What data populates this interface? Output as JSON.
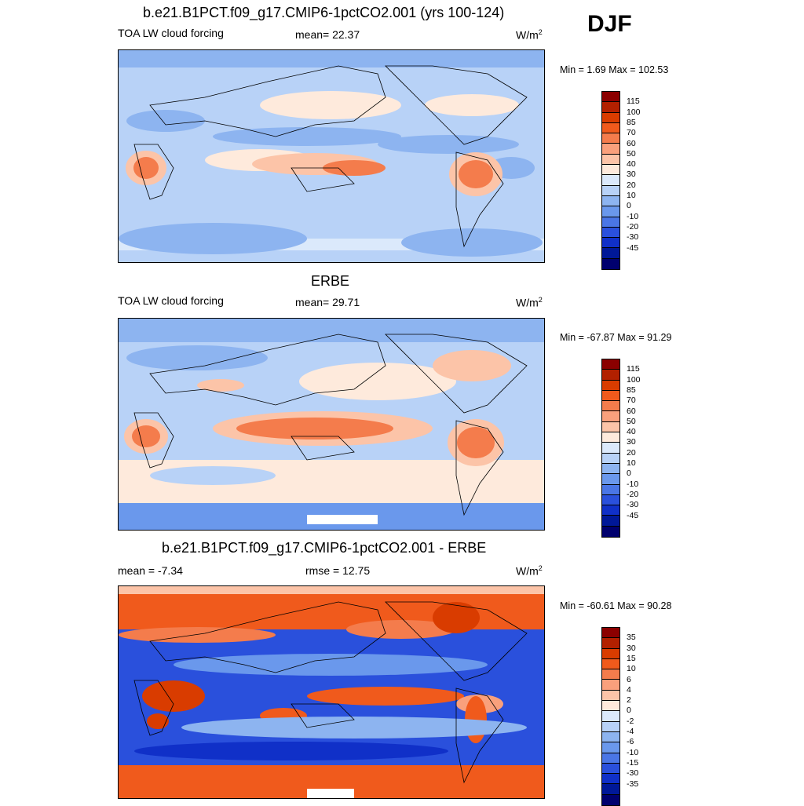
{
  "season": "DJF",
  "panels": [
    {
      "title": "b.e21.B1PCT.f09_g17.CMIP6-1pctCO2.001 (yrs 100-124)",
      "left_label": "TOA LW cloud forcing",
      "center_label": "mean=  22.37",
      "units_base": "W/m",
      "units_exp": "2",
      "minmax": "Min =   1.69 Max = 102.53",
      "colorbar": {
        "colors": [
          "#8b0000",
          "#b22000",
          "#d93c00",
          "#f05a1c",
          "#f47c4c",
          "#f9a07c",
          "#fcc4a8",
          "#feeadc",
          "#dbe9fb",
          "#b8d2f7",
          "#8db4f0",
          "#6a98ec",
          "#4a76e6",
          "#2a50dc",
          "#1030c8",
          "#001898",
          "#00006e"
        ],
        "ticks": [
          "115",
          "100",
          "85",
          "70",
          "60",
          "50",
          "40",
          "30",
          "20",
          "10",
          "0",
          "-10",
          "-20",
          "-30",
          "-45"
        ]
      }
    },
    {
      "title": "ERBE",
      "left_label": "TOA LW cloud forcing",
      "center_label": "mean=  29.71",
      "units_base": "W/m",
      "units_exp": "2",
      "minmax": "Min = -67.87 Max =  91.29",
      "colorbar": {
        "colors": [
          "#8b0000",
          "#b22000",
          "#d93c00",
          "#f05a1c",
          "#f47c4c",
          "#f9a07c",
          "#fcc4a8",
          "#feeadc",
          "#dbe9fb",
          "#b8d2f7",
          "#8db4f0",
          "#6a98ec",
          "#4a76e6",
          "#2a50dc",
          "#1030c8",
          "#001898",
          "#00006e"
        ],
        "ticks": [
          "115",
          "100",
          "85",
          "70",
          "60",
          "50",
          "40",
          "30",
          "20",
          "10",
          "0",
          "-10",
          "-20",
          "-30",
          "-45"
        ]
      }
    },
    {
      "title": "b.e21.B1PCT.f09_g17.CMIP6-1pctCO2.001 - ERBE",
      "left_label": "mean =  -7.34",
      "center_label": "rmse =  12.75",
      "units_base": "W/m",
      "units_exp": "2",
      "minmax": "Min = -60.61 Max =  90.28",
      "colorbar": {
        "colors": [
          "#8b0000",
          "#b22000",
          "#d93c00",
          "#f05a1c",
          "#f47c4c",
          "#f9a07c",
          "#fcc4a8",
          "#feeadc",
          "#dbe9fb",
          "#b8d2f7",
          "#8db4f0",
          "#6a98ec",
          "#4a76e6",
          "#2a50dc",
          "#1030c8",
          "#001898",
          "#00006e"
        ],
        "ticks": [
          "35",
          "30",
          "15",
          "10",
          "6",
          "4",
          "2",
          "0",
          "-2",
          "-4",
          "-6",
          "-10",
          "-15",
          "-30",
          "-35"
        ]
      }
    }
  ]
}
